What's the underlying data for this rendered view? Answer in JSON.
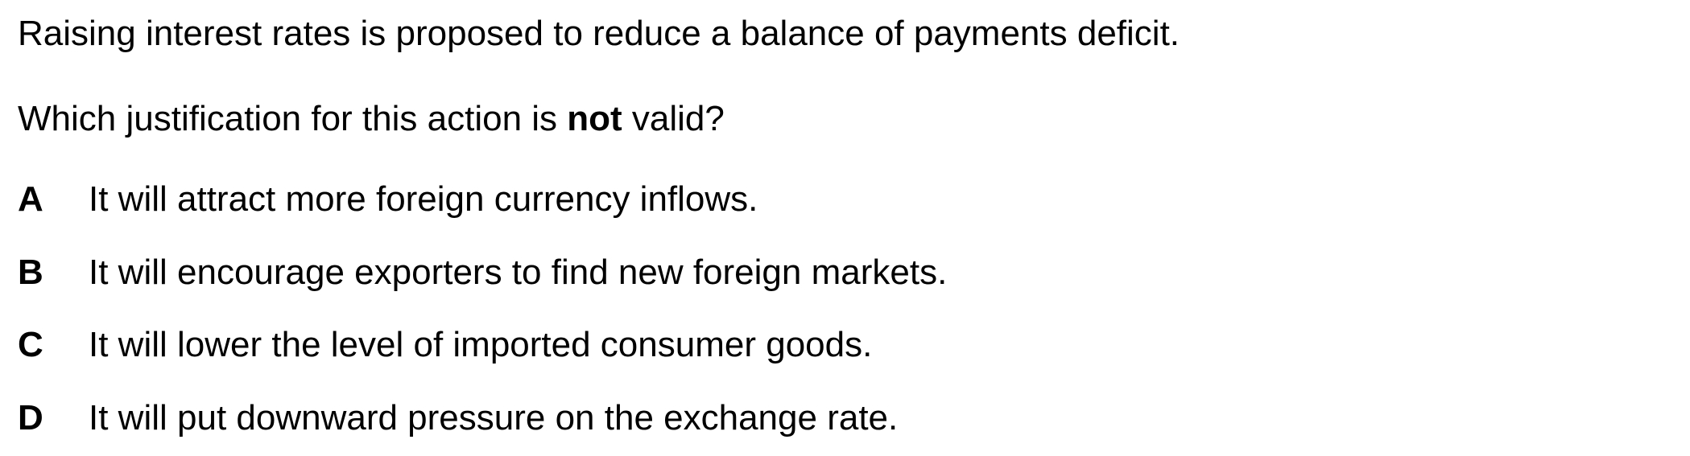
{
  "stem": "Raising interest rates is proposed to reduce a balance of payments deficit.",
  "question": {
    "before": "Which justification for this action is ",
    "emphasis": "not",
    "after": " valid?"
  },
  "options": [
    {
      "letter": "A",
      "text": "It will attract more foreign currency inflows."
    },
    {
      "letter": "B",
      "text": "It will encourage exporters to find new foreign markets."
    },
    {
      "letter": "C",
      "text": "It will lower the level of imported consumer goods."
    },
    {
      "letter": "D",
      "text": "It will put downward pressure on the exchange rate."
    }
  ]
}
